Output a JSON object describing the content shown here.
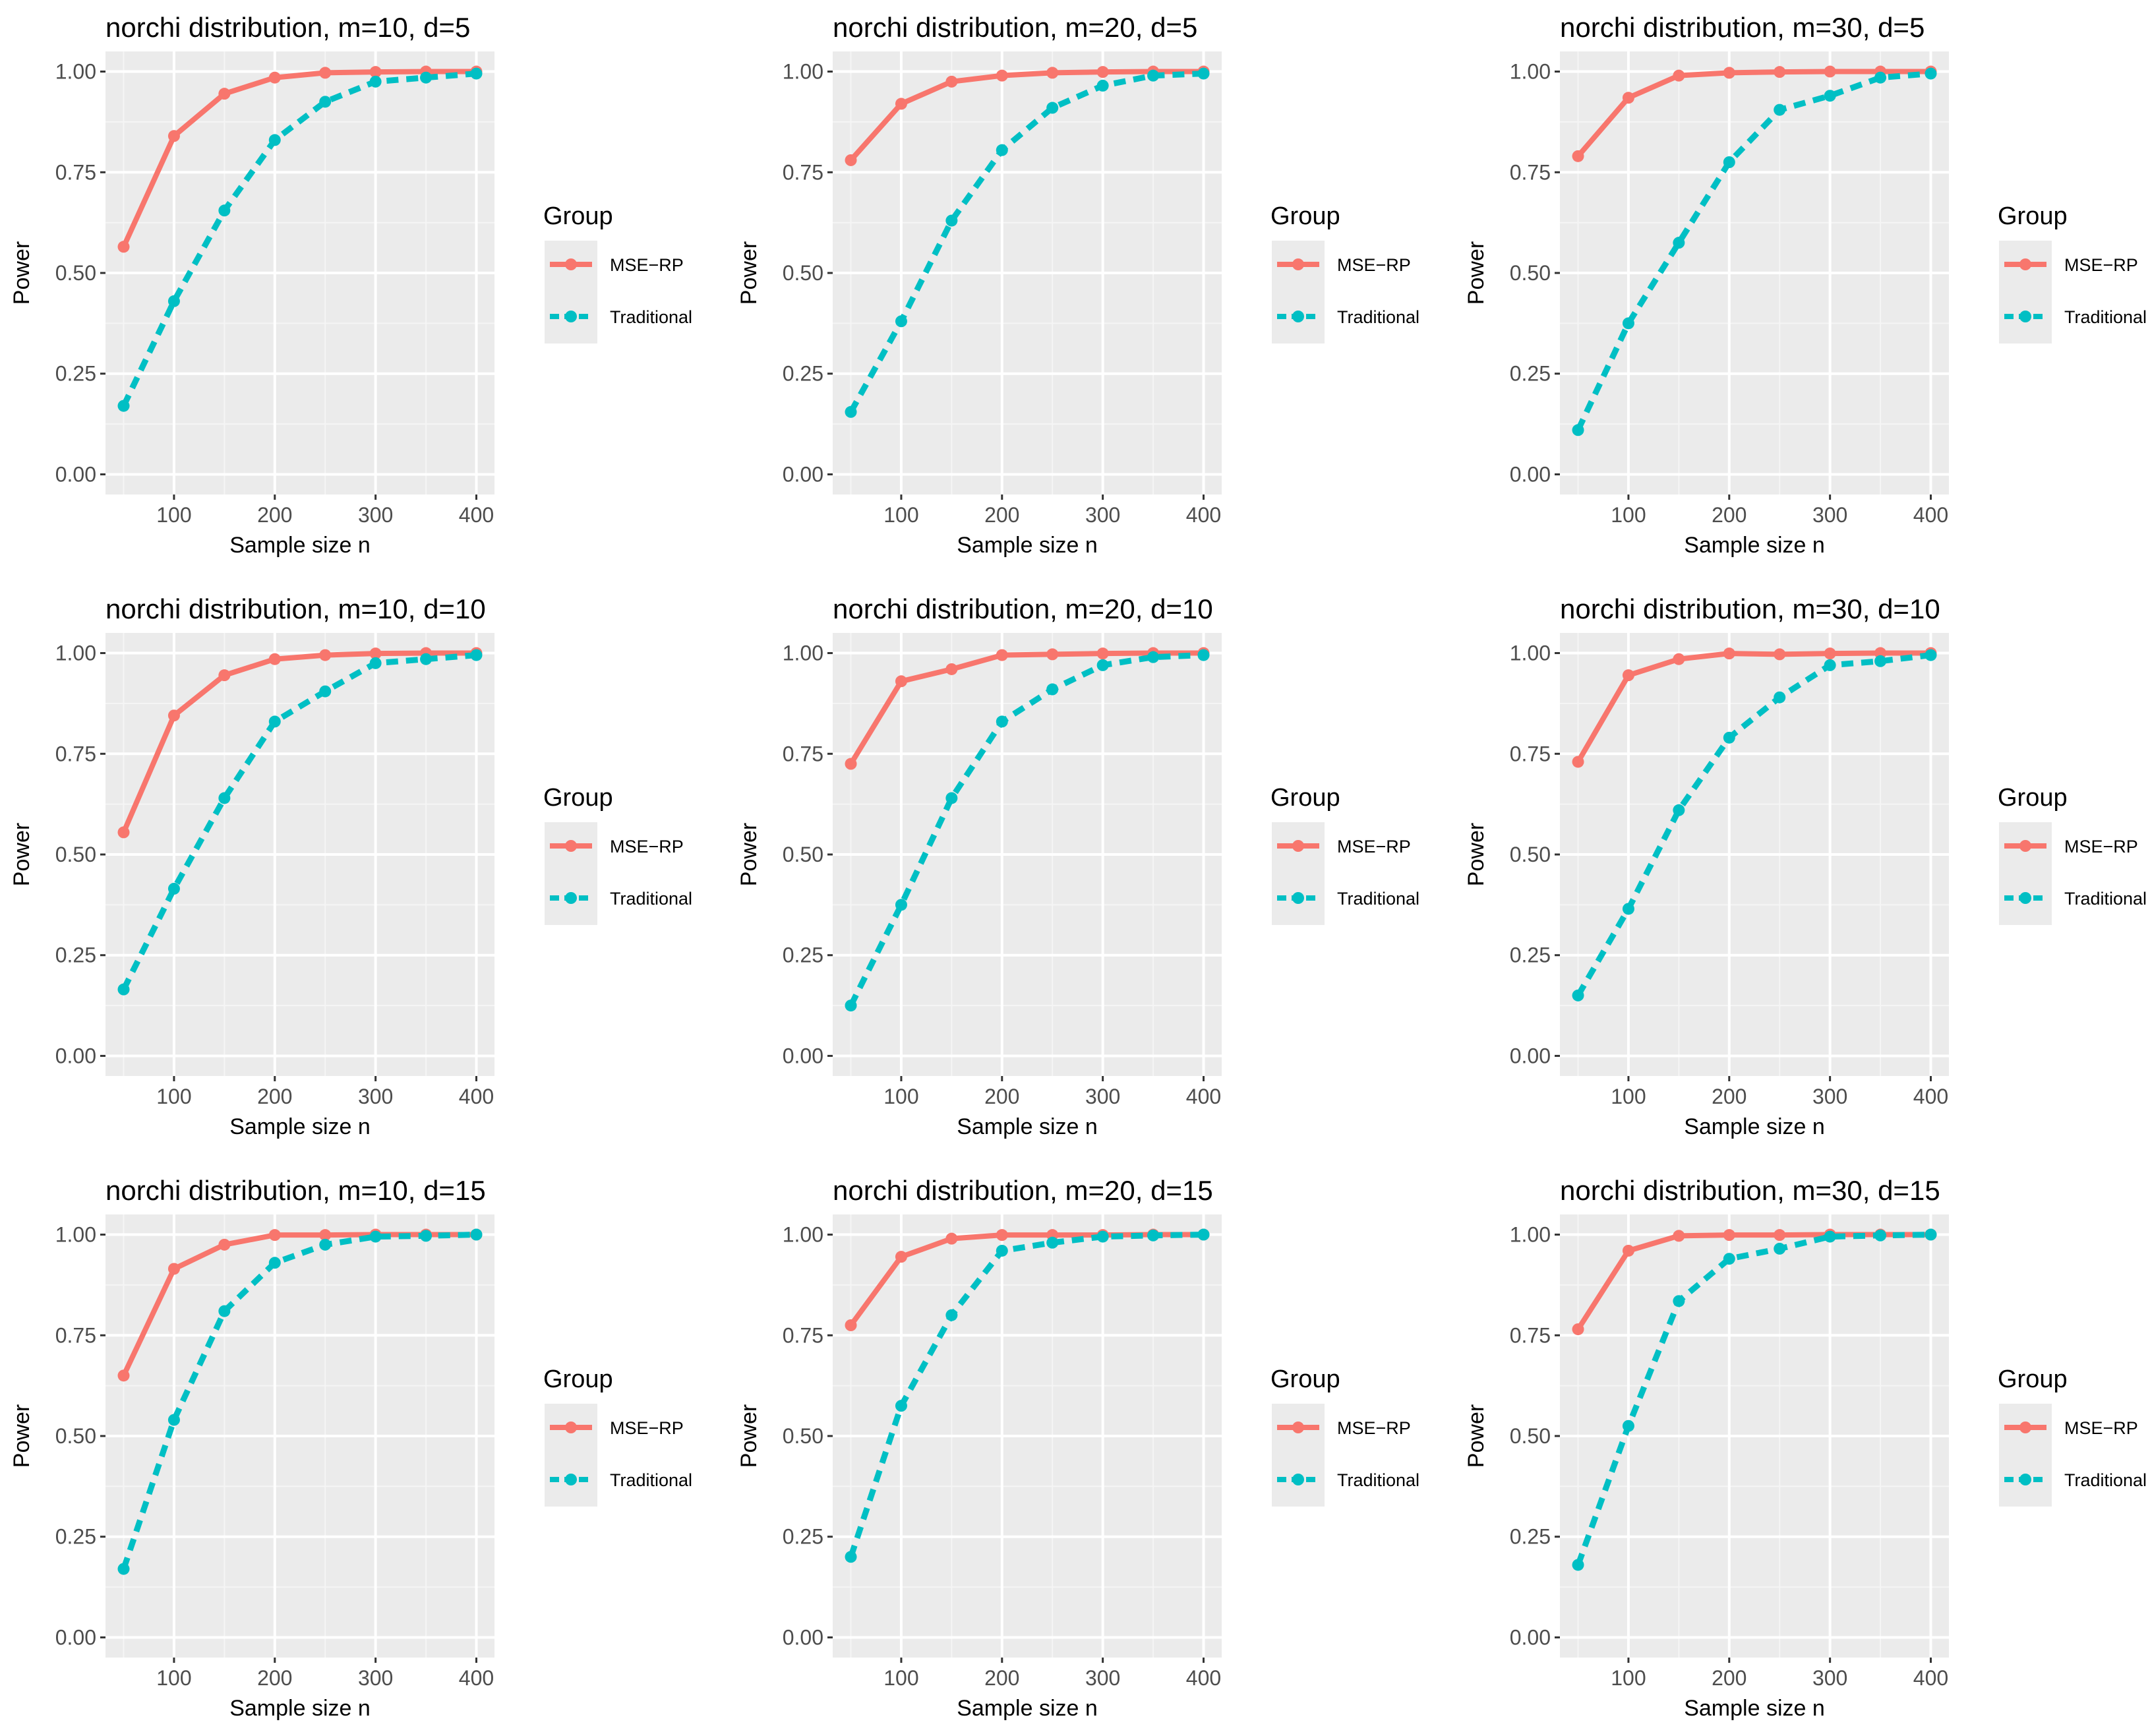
{
  "chart_data": [
    {
      "type": "line",
      "title": "norchi distribution, m=10, d=5",
      "xlabel": "Sample size n",
      "ylabel": "Power",
      "x": [
        50,
        100,
        150,
        200,
        250,
        300,
        350,
        400
      ],
      "xticks": [
        100,
        200,
        300,
        400
      ],
      "yticks": [
        "0.00",
        "0.25",
        "0.50",
        "0.75",
        "1.00"
      ],
      "xlim": [
        32,
        418
      ],
      "ylim": [
        -0.05,
        1.05
      ],
      "legend_title": "Group",
      "series": [
        {
          "name": "MSE−RP",
          "color": "#F8766D",
          "values": [
            0.565,
            0.84,
            0.945,
            0.985,
            0.997,
            0.999,
            1.0,
            1.0
          ]
        },
        {
          "name": "Traditional",
          "color": "#00BFC4",
          "values": [
            0.17,
            0.43,
            0.655,
            0.83,
            0.925,
            0.975,
            0.985,
            0.995
          ]
        }
      ]
    },
    {
      "type": "line",
      "title": "norchi distribution, m=20, d=5",
      "xlabel": "Sample size n",
      "ylabel": "Power",
      "x": [
        50,
        100,
        150,
        200,
        250,
        300,
        350,
        400
      ],
      "xticks": [
        100,
        200,
        300,
        400
      ],
      "yticks": [
        "0.00",
        "0.25",
        "0.50",
        "0.75",
        "1.00"
      ],
      "xlim": [
        32,
        418
      ],
      "ylim": [
        -0.05,
        1.05
      ],
      "legend_title": "Group",
      "series": [
        {
          "name": "MSE−RP",
          "color": "#F8766D",
          "values": [
            0.78,
            0.92,
            0.975,
            0.99,
            0.997,
            0.999,
            1.0,
            1.0
          ]
        },
        {
          "name": "Traditional",
          "color": "#00BFC4",
          "values": [
            0.155,
            0.38,
            0.63,
            0.805,
            0.91,
            0.965,
            0.99,
            0.995
          ]
        }
      ]
    },
    {
      "type": "line",
      "title": "norchi distribution, m=30, d=5",
      "xlabel": "Sample size n",
      "ylabel": "Power",
      "x": [
        50,
        100,
        150,
        200,
        250,
        300,
        350,
        400
      ],
      "xticks": [
        100,
        200,
        300,
        400
      ],
      "yticks": [
        "0.00",
        "0.25",
        "0.50",
        "0.75",
        "1.00"
      ],
      "xlim": [
        32,
        418
      ],
      "ylim": [
        -0.05,
        1.05
      ],
      "legend_title": "Group",
      "series": [
        {
          "name": "MSE−RP",
          "color": "#F8766D",
          "values": [
            0.79,
            0.935,
            0.99,
            0.997,
            0.999,
            1.0,
            1.0,
            1.0
          ]
        },
        {
          "name": "Traditional",
          "color": "#00BFC4",
          "values": [
            0.11,
            0.375,
            0.575,
            0.775,
            0.905,
            0.94,
            0.985,
            0.995
          ]
        }
      ]
    },
    {
      "type": "line",
      "title": "norchi distribution, m=10, d=10",
      "xlabel": "Sample size n",
      "ylabel": "Power",
      "x": [
        50,
        100,
        150,
        200,
        250,
        300,
        350,
        400
      ],
      "xticks": [
        100,
        200,
        300,
        400
      ],
      "yticks": [
        "0.00",
        "0.25",
        "0.50",
        "0.75",
        "1.00"
      ],
      "xlim": [
        32,
        418
      ],
      "ylim": [
        -0.05,
        1.05
      ],
      "legend_title": "Group",
      "series": [
        {
          "name": "MSE−RP",
          "color": "#F8766D",
          "values": [
            0.555,
            0.845,
            0.945,
            0.985,
            0.995,
            0.999,
            1.0,
            1.0
          ]
        },
        {
          "name": "Traditional",
          "color": "#00BFC4",
          "values": [
            0.165,
            0.415,
            0.64,
            0.83,
            0.905,
            0.975,
            0.985,
            0.995
          ]
        }
      ]
    },
    {
      "type": "line",
      "title": "norchi distribution, m=20, d=10",
      "xlabel": "Sample size n",
      "ylabel": "Power",
      "x": [
        50,
        100,
        150,
        200,
        250,
        300,
        350,
        400
      ],
      "xticks": [
        100,
        200,
        300,
        400
      ],
      "yticks": [
        "0.00",
        "0.25",
        "0.50",
        "0.75",
        "1.00"
      ],
      "xlim": [
        32,
        418
      ],
      "ylim": [
        -0.05,
        1.05
      ],
      "legend_title": "Group",
      "series": [
        {
          "name": "MSE−RP",
          "color": "#F8766D",
          "values": [
            0.725,
            0.93,
            0.96,
            0.995,
            0.997,
            0.999,
            1.0,
            1.0
          ]
        },
        {
          "name": "Traditional",
          "color": "#00BFC4",
          "values": [
            0.125,
            0.375,
            0.64,
            0.83,
            0.91,
            0.97,
            0.99,
            0.995
          ]
        }
      ]
    },
    {
      "type": "line",
      "title": "norchi distribution, m=30, d=10",
      "xlabel": "Sample size n",
      "ylabel": "Power",
      "x": [
        50,
        100,
        150,
        200,
        250,
        300,
        350,
        400
      ],
      "xticks": [
        100,
        200,
        300,
        400
      ],
      "yticks": [
        "0.00",
        "0.25",
        "0.50",
        "0.75",
        "1.00"
      ],
      "xlim": [
        32,
        418
      ],
      "ylim": [
        -0.05,
        1.05
      ],
      "legend_title": "Group",
      "series": [
        {
          "name": "MSE−RP",
          "color": "#F8766D",
          "values": [
            0.73,
            0.945,
            0.985,
            0.999,
            0.997,
            0.999,
            1.0,
            1.0
          ]
        },
        {
          "name": "Traditional",
          "color": "#00BFC4",
          "values": [
            0.15,
            0.365,
            0.61,
            0.79,
            0.89,
            0.97,
            0.98,
            0.995
          ]
        }
      ]
    },
    {
      "type": "line",
      "title": "norchi distribution, m=10, d=15",
      "xlabel": "Sample size n",
      "ylabel": "Power",
      "x": [
        50,
        100,
        150,
        200,
        250,
        300,
        350,
        400
      ],
      "xticks": [
        100,
        200,
        300,
        400
      ],
      "yticks": [
        "0.00",
        "0.25",
        "0.50",
        "0.75",
        "1.00"
      ],
      "xlim": [
        32,
        418
      ],
      "ylim": [
        -0.05,
        1.05
      ],
      "legend_title": "Group",
      "series": [
        {
          "name": "MSE−RP",
          "color": "#F8766D",
          "values": [
            0.65,
            0.915,
            0.975,
            0.999,
            0.999,
            1.0,
            1.0,
            1.0
          ]
        },
        {
          "name": "Traditional",
          "color": "#00BFC4",
          "values": [
            0.17,
            0.54,
            0.81,
            0.93,
            0.975,
            0.995,
            0.997,
            1.0
          ]
        }
      ]
    },
    {
      "type": "line",
      "title": "norchi distribution, m=20, d=15",
      "xlabel": "Sample size n",
      "ylabel": "Power",
      "x": [
        50,
        100,
        150,
        200,
        250,
        300,
        350,
        400
      ],
      "xticks": [
        100,
        200,
        300,
        400
      ],
      "yticks": [
        "0.00",
        "0.25",
        "0.50",
        "0.75",
        "1.00"
      ],
      "xlim": [
        32,
        418
      ],
      "ylim": [
        -0.05,
        1.05
      ],
      "legend_title": "Group",
      "series": [
        {
          "name": "MSE−RP",
          "color": "#F8766D",
          "values": [
            0.775,
            0.945,
            0.99,
            0.999,
            0.999,
            0.999,
            1.0,
            1.0
          ]
        },
        {
          "name": "Traditional",
          "color": "#00BFC4",
          "values": [
            0.2,
            0.575,
            0.8,
            0.96,
            0.98,
            0.995,
            0.998,
            1.0
          ]
        }
      ]
    },
    {
      "type": "line",
      "title": "norchi distribution, m=30, d=15",
      "xlabel": "Sample size n",
      "ylabel": "Power",
      "x": [
        50,
        100,
        150,
        200,
        250,
        300,
        350,
        400
      ],
      "xticks": [
        100,
        200,
        300,
        400
      ],
      "yticks": [
        "0.00",
        "0.25",
        "0.50",
        "0.75",
        "1.00"
      ],
      "xlim": [
        32,
        418
      ],
      "ylim": [
        -0.05,
        1.05
      ],
      "legend_title": "Group",
      "series": [
        {
          "name": "MSE−RP",
          "color": "#F8766D",
          "values": [
            0.765,
            0.96,
            0.997,
            0.999,
            0.999,
            1.0,
            1.0,
            1.0
          ]
        },
        {
          "name": "Traditional",
          "color": "#00BFC4",
          "values": [
            0.18,
            0.525,
            0.835,
            0.94,
            0.965,
            0.995,
            0.998,
            1.0
          ]
        }
      ]
    }
  ]
}
